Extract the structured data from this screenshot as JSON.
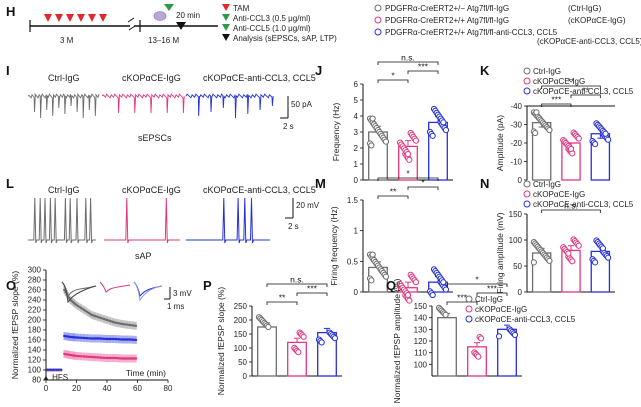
{
  "colors": {
    "ctrl": "#6e6e6e",
    "cko": "#e3377f",
    "treat": "#2531d9",
    "tam": "#e0282e",
    "inj": "#2e9a46",
    "analysis": "#111111"
  },
  "panel_h": {
    "label": "H",
    "age_start": "3 M",
    "age_end": "13–16 M",
    "time": "20 min",
    "legend": [
      "TAM",
      "Anti-CCL3 (0.5 μg/ml)",
      "Anti-CCL5 (1.0 μg/ml)",
      "Analysis (sEPSCs, sAP, LTP)"
    ],
    "groups": [
      {
        "genotype": "PDGFRα-CreERT2+/− Atg7fl/fl-IgG",
        "abbr": "(Ctrl-IgG)"
      },
      {
        "genotype": "PDGFRα-CreERT2+/+ Atg7fl/fl-IgG",
        "abbr": "(cKOPαCE-IgG)"
      },
      {
        "genotype": "PDGFRα-CreERT2+/+ Atg7fl/fl-anti-CCL3, CCL5",
        "abbr": "(cKOPαCE-anti-CCL3, CCL5)"
      }
    ]
  },
  "trace_labels": {
    "ctrl": "Ctrl-IgG",
    "cko": "cKOPαCE-IgG",
    "treat": "cKOPαCE-anti-CCL3, CCL5"
  },
  "panel_i": {
    "label": "I",
    "event": "sEPSCs",
    "scale_y": "50 pA",
    "scale_x": "2 s"
  },
  "panel_l": {
    "label": "L",
    "event": "sAP",
    "scale_y": "20 mV",
    "scale_x": "2 s"
  },
  "panel_o": {
    "label": "O",
    "scale_y": "3 mV",
    "scale_x": "1 ms",
    "hfs": "▲ HFS",
    "xlabel": "Time (min)"
  },
  "legend_k": [
    "Ctrl-IgG",
    "cKOPαCE-IgG",
    "cKOPαCE-anti-CCL3, CCL5"
  ],
  "chart_data": [
    {
      "panel": "J",
      "type": "bar",
      "ylabel": "Frequency (Hz)",
      "ylim": [
        0,
        6
      ],
      "yticks": [
        0,
        1,
        2,
        3,
        4,
        5,
        6
      ],
      "categories": [
        "Ctrl-IgG",
        "cKOPαCE-IgG",
        "cKOPαCE-anti-CCL3, CCL5"
      ],
      "values": [
        3.0,
        2.1,
        3.6
      ],
      "significance": [
        {
          "pair": [
            0,
            1
          ],
          "label": "*"
        },
        {
          "pair": [
            1,
            2
          ],
          "label": "***"
        },
        {
          "pair": [
            0,
            2
          ],
          "label": "n.s."
        }
      ]
    },
    {
      "panel": "K",
      "type": "bar",
      "ylabel": "Amplitude (pA)",
      "ylim": [
        0,
        -40
      ],
      "yticks": [
        0,
        -10,
        -20,
        -30,
        -40
      ],
      "categories": [
        "Ctrl-IgG",
        "cKOPαCE-IgG",
        "cKOPαCE-anti-CCL3, CCL5"
      ],
      "values": [
        -31,
        -20,
        -25
      ],
      "significance": [
        {
          "pair": [
            0,
            1
          ],
          "label": "***"
        },
        {
          "pair": [
            1,
            2
          ],
          "label": "**"
        },
        {
          "pair": [
            0,
            2
          ],
          "label": "**"
        }
      ]
    },
    {
      "panel": "M",
      "type": "bar",
      "ylabel": "Firing frequency (Hz)",
      "ylim": [
        0,
        1.5
      ],
      "yticks": [
        0.0,
        0.5,
        1.0,
        1.5
      ],
      "categories": [
        "Ctrl-IgG",
        "cKOPαCE-IgG",
        "cKOPαCE-anti-CCL3, CCL5"
      ],
      "values": [
        0.4,
        0.07,
        0.16
      ],
      "significance": [
        {
          "pair": [
            0,
            1
          ],
          "label": "**"
        },
        {
          "pair": [
            1,
            2
          ],
          "label": "*"
        },
        {
          "pair": [
            0,
            2
          ],
          "label": "*"
        }
      ]
    },
    {
      "panel": "N",
      "type": "bar",
      "ylabel": "Firing amplitude (mV)",
      "ylim": [
        0,
        150
      ],
      "yticks": [
        0,
        50,
        100,
        150
      ],
      "categories": [
        "Ctrl-IgG",
        "cKOPαCE-IgG",
        "cKOPαCE-anti-CCL3, CCL5"
      ],
      "values": [
        75,
        80,
        78
      ],
      "significance": [
        {
          "pair": [
            0,
            2
          ],
          "label": "n.s."
        }
      ]
    },
    {
      "panel": "O",
      "type": "scatter",
      "ylabel": "Normalized fEPSP slope (%)",
      "xlabel": "Time (min)",
      "xlim": [
        0,
        80
      ],
      "xticks": [
        0,
        20,
        40,
        60,
        80
      ],
      "ylim": [
        80,
        300
      ],
      "yticks": [
        80,
        100,
        120,
        140,
        160,
        180,
        200,
        220,
        240,
        260,
        280,
        300
      ],
      "series": [
        {
          "name": "Ctrl-IgG",
          "x": [
            12,
            16,
            20,
            25,
            30,
            35,
            40,
            45,
            50,
            55,
            60
          ],
          "values": [
            260,
            240,
            230,
            220,
            210,
            205,
            200,
            195,
            192,
            190,
            188
          ]
        },
        {
          "name": "cKOPαCE-IgG",
          "x": [
            12,
            16,
            20,
            25,
            30,
            35,
            40,
            45,
            50,
            55,
            60
          ],
          "values": [
            132,
            130,
            128,
            127,
            126,
            125,
            124,
            124,
            123,
            123,
            123
          ]
        },
        {
          "name": "cKOPαCE-anti-CCL3, CCL5",
          "x": [
            12,
            16,
            20,
            25,
            30,
            35,
            40,
            45,
            50,
            55,
            60
          ],
          "values": [
            168,
            166,
            165,
            164,
            163,
            163,
            162,
            162,
            161,
            161,
            160
          ]
        }
      ]
    },
    {
      "panel": "P",
      "type": "bar",
      "ylabel": "Normalized fEPSP slope (%)",
      "ylim": [
        0,
        250
      ],
      "yticks": [
        0,
        50,
        100,
        150,
        200,
        250
      ],
      "categories": [
        "Ctrl-IgG",
        "cKOPαCE-IgG",
        "cKOPαCE-anti-CCL3, CCL5"
      ],
      "values": [
        175,
        120,
        155
      ],
      "significance": [
        {
          "pair": [
            0,
            1
          ],
          "label": "**"
        },
        {
          "pair": [
            1,
            2
          ],
          "label": "***"
        },
        {
          "pair": [
            0,
            2
          ],
          "label": "n.s."
        }
      ]
    },
    {
      "panel": "Q",
      "type": "bar",
      "ylabel": "Normalized fEPSP amplitude (%)",
      "ylim": [
        90,
        150
      ],
      "yticks": [
        100,
        110,
        120,
        130,
        140,
        150
      ],
      "categories": [
        "Ctrl-IgG",
        "cKOPαCE-IgG",
        "cKOPαCE-anti-CCL3, CCL5"
      ],
      "values": [
        140,
        115,
        130
      ],
      "significance": [
        {
          "pair": [
            0,
            1
          ],
          "label": "***"
        },
        {
          "pair": [
            1,
            2
          ],
          "label": "***"
        },
        {
          "pair": [
            0,
            2
          ],
          "label": "*"
        }
      ]
    }
  ]
}
